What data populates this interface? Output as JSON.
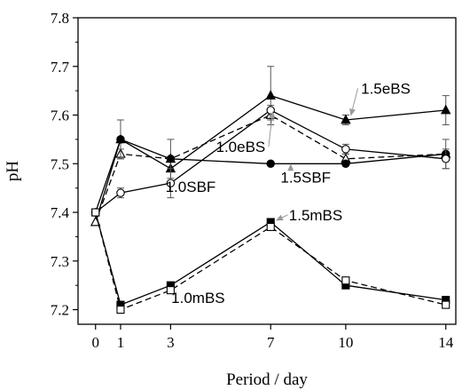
{
  "chart_data": {
    "type": "line",
    "title": "",
    "xlabel": "Period / day",
    "ylabel": "pH",
    "x": [
      0,
      1,
      3,
      7,
      10,
      14
    ],
    "xticks": [
      0,
      1,
      3,
      7,
      10,
      14
    ],
    "yticks": [
      7.2,
      7.3,
      7.4,
      7.5,
      7.6,
      7.7,
      7.8
    ],
    "ytick_labels": [
      "7.2",
      "7.3",
      "7.4",
      "7.5",
      "7.6",
      "7.7",
      "7.8"
    ],
    "xlim": [
      -0.7,
      14.4
    ],
    "ylim": [
      7.17,
      7.8
    ],
    "grid": false,
    "series": [
      {
        "name": "1.5eBS",
        "marker": "triangle",
        "filled": true,
        "dashed": false,
        "values": [
          7.38,
          7.55,
          7.49,
          7.64,
          7.59,
          7.61
        ],
        "errors": [
          0,
          0,
          0,
          0.06,
          0.01,
          0.03
        ]
      },
      {
        "name": "1.0eBS",
        "marker": "triangle",
        "filled": false,
        "dashed": true,
        "values": [
          7.38,
          7.52,
          7.51,
          7.6,
          7.51,
          7.52
        ],
        "errors": [
          0,
          0.01,
          0.04,
          0.01,
          0.01,
          0.03
        ]
      },
      {
        "name": "1.5SBF",
        "marker": "circle",
        "filled": true,
        "dashed": false,
        "values": [
          7.4,
          7.55,
          7.51,
          7.5,
          7.5,
          7.52
        ],
        "errors": [
          0,
          0.04,
          0,
          0,
          0,
          0
        ]
      },
      {
        "name": "1.0SBF",
        "marker": "circle",
        "filled": false,
        "dashed": false,
        "values": [
          7.4,
          7.44,
          7.46,
          7.61,
          7.53,
          7.51
        ],
        "errors": [
          0,
          0.01,
          0.03,
          0.01,
          0.01,
          0.02
        ]
      },
      {
        "name": "1.5mBS",
        "marker": "square",
        "filled": true,
        "dashed": false,
        "values": [
          7.4,
          7.21,
          7.25,
          7.38,
          7.25,
          7.22
        ],
        "errors": [
          0,
          0,
          0,
          0,
          0,
          0
        ]
      },
      {
        "name": "1.0mBS",
        "marker": "square",
        "filled": false,
        "dashed": true,
        "values": [
          7.4,
          7.2,
          7.24,
          7.37,
          7.26,
          7.21
        ],
        "errors": [
          0,
          0,
          0,
          0,
          0,
          0
        ]
      }
    ],
    "annotations": [
      {
        "text": "1.5eBS",
        "text_x": 11.6,
        "text_y": 7.655,
        "arrow_to": [
          10.2,
          7.598
        ]
      },
      {
        "text": "1.0eBS",
        "text_x": 5.8,
        "text_y": 7.535,
        "arrow_to": [
          7.08,
          7.608
        ]
      },
      {
        "text": "1.5SBF",
        "text_x": 8.4,
        "text_y": 7.472,
        "arrow_to": [
          7.8,
          7.5
        ]
      },
      {
        "text": "1.0SBF",
        "text_x": 3.8,
        "text_y": 7.453,
        "arrow_to": [
          3.2,
          7.46
        ]
      },
      {
        "text": "1.5mBS",
        "text_x": 8.8,
        "text_y": 7.395,
        "arrow_to": [
          7.2,
          7.383
        ]
      },
      {
        "text": "1.0mBS",
        "text_x": 4.1,
        "text_y": 7.225,
        "arrow_to": [
          3.2,
          7.238
        ]
      }
    ]
  }
}
